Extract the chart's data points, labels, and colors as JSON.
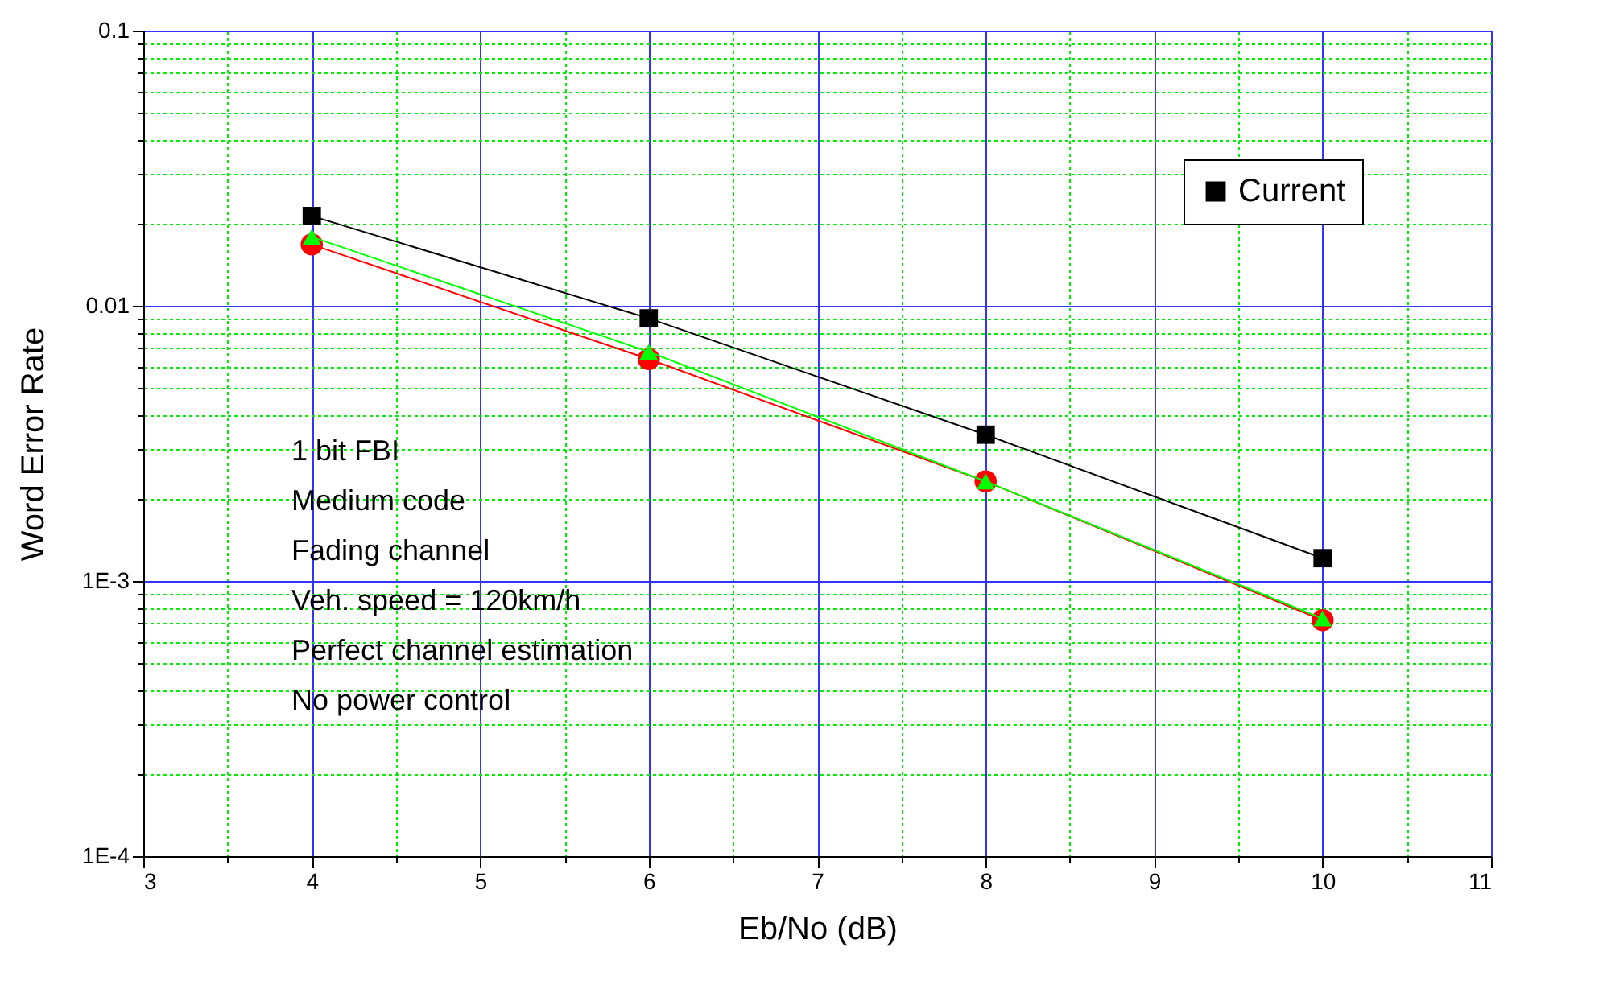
{
  "chart_data": {
    "type": "line",
    "xlabel": "Eb/No (dB)",
    "ylabel": "Word Error Rate",
    "x": [
      4,
      6,
      8,
      10
    ],
    "series": [
      {
        "name": "Current",
        "color": "#000000",
        "marker": "square",
        "values": [
          0.0212,
          0.009,
          0.0034,
          0.00121
        ]
      },
      {
        "color": "#ff0000",
        "marker": "circle",
        "values": [
          0.0167,
          0.0064,
          0.0023,
          0.00072
        ]
      },
      {
        "color": "#00ff00",
        "marker": "triangle",
        "values": [
          0.0178,
          0.0068,
          0.0023,
          0.00073
        ]
      }
    ],
    "xlim": [
      3,
      11
    ],
    "xticks": [
      3,
      {
        "value": 3.5,
        "label": null
      },
      4,
      {
        "value": 4.5,
        "label": null
      },
      5,
      {
        "value": 5.5,
        "label": null
      },
      6,
      {
        "value": 6.5,
        "label": null
      },
      7,
      {
        "value": 7.5,
        "label": null
      },
      8,
      {
        "value": 8.5,
        "label": null
      },
      9,
      {
        "value": 9.5,
        "label": null
      },
      10,
      {
        "value": 10.5,
        "label": null
      },
      11
    ],
    "ylim": [
      0.0001,
      0.1
    ],
    "yticks": [
      0.1,
      {
        "value": 0.09,
        "label": null
      },
      {
        "value": 0.08,
        "label": null
      },
      {
        "value": 0.07,
        "label": null
      },
      {
        "value": 0.06,
        "label": null
      },
      {
        "value": 0.05,
        "label": null
      },
      {
        "value": 0.04,
        "label": null
      },
      {
        "value": 0.03,
        "label": null
      },
      {
        "value": 0.02,
        "label": null
      },
      0.01,
      {
        "value": 0.009,
        "label": null
      },
      {
        "value": 0.008,
        "label": null
      },
      {
        "value": 0.007,
        "label": null
      },
      {
        "value": 0.006,
        "label": null
      },
      {
        "value": 0.005,
        "label": null
      },
      {
        "value": 0.004,
        "label": null
      },
      {
        "value": 0.003,
        "label": null
      },
      {
        "value": 0.002,
        "label": null
      },
      {
        "value": 0.001,
        "label": "1E-3"
      },
      {
        "value": 0.0009,
        "label": null
      },
      {
        "value": 0.0008,
        "label": null
      },
      {
        "value": 0.0007,
        "label": null
      },
      {
        "value": 0.0006,
        "label": null
      },
      {
        "value": 0.0005,
        "label": null
      },
      {
        "value": 0.0004,
        "label": null
      },
      {
        "value": 0.0003,
        "label": null
      },
      {
        "value": 0.0002,
        "label": null
      },
      {
        "value": 0.0001,
        "label": "1E-4"
      }
    ],
    "log": "y",
    "grid": true,
    "legend": "top right",
    "line_style": "solid",
    "annotations": [
      "1 bit FBI",
      "Medium code",
      "Fading channel",
      "Veh. speed = 120km/h",
      "Perfect channel estimation",
      "No power control"
    ]
  }
}
